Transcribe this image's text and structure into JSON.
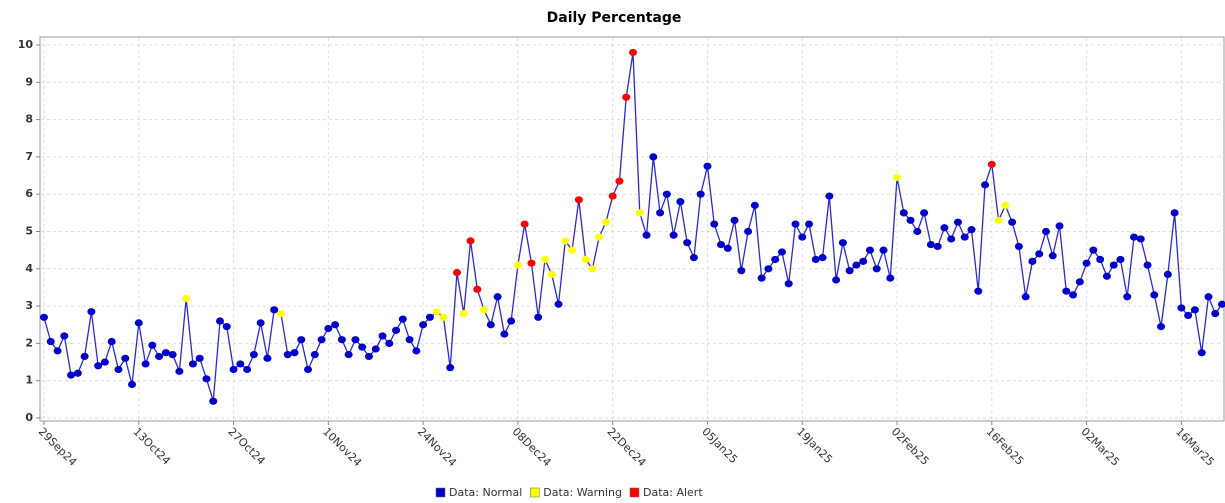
{
  "chart_data": {
    "type": "line",
    "title": "Daily Percentage",
    "x": [
      "29Sep24",
      "30Sep24",
      "01Oct24",
      "02Oct24",
      "03Oct24",
      "04Oct24",
      "05Oct24",
      "06Oct24",
      "07Oct24",
      "08Oct24",
      "09Oct24",
      "10Oct24",
      "11Oct24",
      "12Oct24",
      "13Oct24",
      "14Oct24",
      "15Oct24",
      "16Oct24",
      "17Oct24",
      "18Oct24",
      "19Oct24",
      "20Oct24",
      "21Oct24",
      "22Oct24",
      "23Oct24",
      "24Oct24",
      "25Oct24",
      "26Oct24",
      "27Oct24",
      "28Oct24",
      "29Oct24",
      "30Oct24",
      "31Oct24",
      "01Nov24",
      "02Nov24",
      "03Nov24",
      "04Nov24",
      "05Nov24",
      "06Nov24",
      "07Nov24",
      "08Nov24",
      "09Nov24",
      "10Nov24",
      "11Nov24",
      "12Nov24",
      "13Nov24",
      "14Nov24",
      "15Nov24",
      "16Nov24",
      "17Nov24",
      "18Nov24",
      "19Nov24",
      "20Nov24",
      "21Nov24",
      "22Nov24",
      "23Nov24",
      "24Nov24",
      "25Nov24",
      "26Nov24",
      "27Nov24",
      "28Nov24",
      "29Nov24",
      "30Nov24",
      "01Dec24",
      "02Dec24",
      "03Dec24",
      "04Dec24",
      "05Dec24",
      "06Dec24",
      "07Dec24",
      "08Dec24",
      "09Dec24",
      "10Dec24",
      "11Dec24",
      "12Dec24",
      "13Dec24",
      "14Dec24",
      "15Dec24",
      "16Dec24",
      "17Dec24",
      "18Dec24",
      "19Dec24",
      "20Dec24",
      "21Dec24",
      "22Dec24",
      "23Dec24",
      "24Dec24",
      "25Dec24",
      "26Dec24",
      "27Dec24",
      "28Dec24",
      "29Dec24",
      "30Dec24",
      "31Dec24",
      "01Jan25",
      "02Jan25",
      "03Jan25",
      "04Jan25",
      "05Jan25",
      "06Jan25",
      "07Jan25",
      "08Jan25",
      "09Jan25",
      "10Jan25",
      "11Jan25",
      "12Jan25",
      "13Jan25",
      "14Jan25",
      "15Jan25",
      "16Jan25",
      "17Jan25",
      "18Jan25",
      "19Jan25",
      "20Jan25",
      "21Jan25",
      "22Jan25",
      "23Jan25",
      "24Jan25",
      "25Jan25",
      "26Jan25",
      "27Jan25",
      "28Jan25",
      "29Jan25",
      "30Jan25",
      "31Jan25",
      "01Feb25",
      "02Feb25",
      "03Feb25",
      "04Feb25",
      "05Feb25",
      "06Feb25",
      "07Feb25",
      "08Feb25",
      "09Feb25",
      "10Feb25",
      "11Feb25",
      "12Feb25",
      "13Feb25",
      "14Feb25",
      "15Feb25",
      "16Feb25",
      "17Feb25",
      "18Feb25",
      "19Feb25",
      "20Feb25",
      "21Feb25",
      "22Feb25",
      "23Feb25",
      "24Feb25",
      "25Feb25",
      "26Feb25",
      "27Feb25",
      "28Feb25",
      "01Mar25",
      "02Mar25",
      "03Mar25",
      "04Mar25",
      "05Mar25",
      "06Mar25",
      "07Mar25",
      "08Mar25",
      "09Mar25",
      "10Mar25",
      "11Mar25",
      "12Mar25",
      "13Mar25",
      "14Mar25",
      "15Mar25",
      "16Mar25",
      "17Mar25",
      "18Mar25",
      "19Mar25",
      "20Mar25",
      "21Mar25",
      "22Mar25"
    ],
    "series": [
      {
        "color": "#2a2ad0",
        "values": [
          2.7,
          2.05,
          1.8,
          2.2,
          1.15,
          1.2,
          1.65,
          2.85,
          1.4,
          1.5,
          2.05,
          1.3,
          1.6,
          0.9,
          2.55,
          1.45,
          1.95,
          1.65,
          1.75,
          1.7,
          1.25,
          3.2,
          1.45,
          1.6,
          1.05,
          0.45,
          2.6,
          2.45,
          1.3,
          1.45,
          1.3,
          1.7,
          2.55,
          1.6,
          2.9,
          2.8,
          1.7,
          1.75,
          2.1,
          1.3,
          1.7,
          2.1,
          2.4,
          2.5,
          2.1,
          1.7,
          2.1,
          1.9,
          1.65,
          1.85,
          2.2,
          2.0,
          2.35,
          2.65,
          2.1,
          1.8,
          2.5,
          2.7,
          2.85,
          2.7,
          1.35,
          3.9,
          2.8,
          4.75,
          3.45,
          2.9,
          2.5,
          3.25,
          2.25,
          2.6,
          4.1,
          5.2,
          4.15,
          2.7,
          4.25,
          3.85,
          3.05,
          4.75,
          4.5,
          5.85,
          4.25,
          4.0,
          4.85,
          5.25,
          5.95,
          6.35,
          8.6,
          9.8,
          5.5,
          4.9,
          7.0,
          5.5,
          6.0,
          4.9,
          5.8,
          4.7,
          4.3,
          6.0,
          6.75,
          5.2,
          4.65,
          4.55,
          5.3,
          3.95,
          5.0,
          5.7,
          3.75,
          4.0,
          4.25,
          4.45,
          3.6,
          5.2,
          4.85,
          5.2,
          4.25,
          4.3,
          5.95,
          3.7,
          4.7,
          3.95,
          4.1,
          4.2,
          4.5,
          4.0,
          4.5,
          3.75,
          6.45,
          5.5,
          5.3,
          5.0,
          5.5,
          4.65,
          4.6,
          5.1,
          4.8,
          5.25,
          4.85,
          5.05,
          3.4,
          6.25,
          6.8,
          5.3,
          5.7,
          5.25,
          4.6,
          3.25,
          4.2,
          4.4,
          5.0,
          4.35,
          5.15,
          3.4,
          3.3,
          3.65,
          4.15,
          4.5,
          4.25,
          3.8,
          4.1,
          4.25,
          3.25,
          4.85,
          4.8,
          4.1,
          3.3,
          2.45,
          3.85,
          5.5,
          2.95,
          2.75,
          2.9,
          1.75,
          3.25,
          2.8,
          3.05
        ]
      }
    ],
    "point_classes": [
      {
        "name": "Data: Normal",
        "color": "#0000c8"
      },
      {
        "name": "Data: Warning",
        "color": "#ffff00"
      },
      {
        "name": "Data: Alert",
        "color": "#ff0000"
      }
    ],
    "point_class": [
      0,
      0,
      0,
      0,
      0,
      0,
      0,
      0,
      0,
      0,
      0,
      0,
      0,
      0,
      0,
      0,
      0,
      0,
      0,
      0,
      0,
      1,
      0,
      0,
      0,
      0,
      0,
      0,
      0,
      0,
      0,
      0,
      0,
      0,
      0,
      1,
      0,
      0,
      0,
      0,
      0,
      0,
      0,
      0,
      0,
      0,
      0,
      0,
      0,
      0,
      0,
      0,
      0,
      0,
      0,
      0,
      0,
      0,
      1,
      1,
      0,
      2,
      1,
      2,
      2,
      1,
      0,
      0,
      0,
      0,
      1,
      2,
      2,
      0,
      1,
      1,
      0,
      1,
      1,
      2,
      1,
      1,
      1,
      1,
      2,
      2,
      2,
      2,
      1,
      0,
      0,
      0,
      0,
      0,
      0,
      0,
      0,
      0,
      0,
      0,
      0,
      0,
      0,
      0,
      0,
      0,
      0,
      0,
      0,
      0,
      0,
      0,
      0,
      0,
      0,
      0,
      0,
      0,
      0,
      0,
      0,
      0,
      0,
      0,
      0,
      0,
      1,
      0,
      0,
      0,
      0,
      0,
      0,
      0,
      0,
      0,
      0,
      0,
      0,
      0,
      2,
      1,
      1,
      0,
      0,
      0,
      0,
      0,
      0,
      0,
      0,
      0,
      0,
      0,
      0,
      0,
      0,
      0,
      0,
      0,
      0,
      0,
      0,
      0,
      0,
      0,
      0,
      0,
      0,
      0,
      0,
      0,
      0,
      0,
      0
    ],
    "xlim": [
      "29Sep24",
      "22Mar25"
    ],
    "xticks": [
      "29Sep24",
      "13Oct24",
      "27Oct24",
      "10Nov24",
      "24Nov24",
      "08Dec24",
      "22Dec24",
      "05Jan25",
      "19Jan25",
      "02Feb25",
      "16Feb25",
      "02Mar25",
      "16Mar25"
    ],
    "ylim": [
      0,
      10
    ],
    "yticks": [
      0,
      1,
      2,
      3,
      4,
      5,
      6,
      7,
      8,
      9,
      10
    ],
    "grid": true
  }
}
